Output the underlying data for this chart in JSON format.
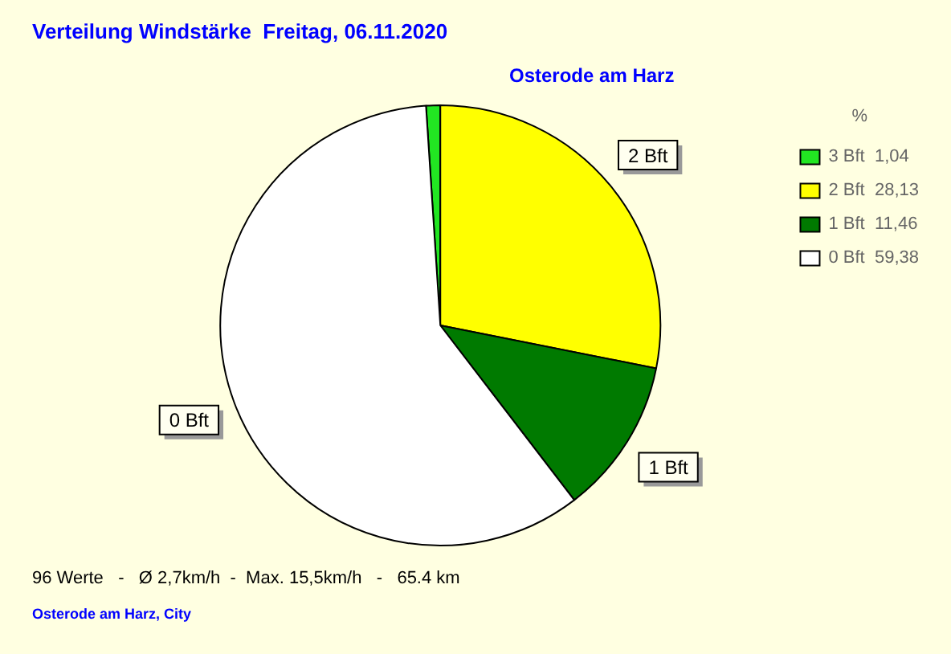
{
  "chart_data": {
    "type": "pie",
    "title": "Verteilung Windstärke  Freitag, 06.11.2020",
    "subtitle": "Osterode am Harz",
    "categories": [
      "3 Bft",
      "2 Bft",
      "1 Bft",
      "0 Bft"
    ],
    "values": [
      1.04,
      28.13,
      11.46,
      59.38
    ],
    "value_labels": [
      "1,04",
      "28,13",
      "11,46",
      "59,38"
    ],
    "colors": [
      "#22e622",
      "#ffff00",
      "#007a00",
      "#ffffff"
    ],
    "legend": "top right",
    "legend_title": "%",
    "annotations": [
      "96 Werte   -   Ø 2,7km/h  -  Max. 15,5km/h   -   65.4 km",
      "Osterode am Harz, City"
    ]
  }
}
